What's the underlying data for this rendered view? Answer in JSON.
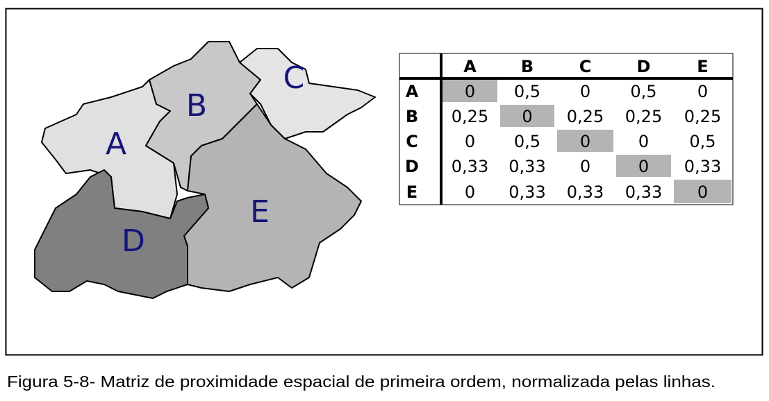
{
  "map": {
    "regions": [
      "A",
      "B",
      "C",
      "D",
      "E"
    ]
  },
  "table": {
    "columns": [
      "A",
      "B",
      "C",
      "D",
      "E"
    ],
    "rows": [
      {
        "label": "A",
        "cells": [
          "0",
          "0,5",
          "0",
          "0,5",
          "0"
        ]
      },
      {
        "label": "B",
        "cells": [
          "0,25",
          "0",
          "0,25",
          "0,25",
          "0,25"
        ]
      },
      {
        "label": "C",
        "cells": [
          "0",
          "0,5",
          "0",
          "0",
          "0,5"
        ]
      },
      {
        "label": "D",
        "cells": [
          "0,33",
          "0,33",
          "0",
          "0",
          "0,33"
        ]
      },
      {
        "label": "E",
        "cells": [
          "0",
          "0,33",
          "0,33",
          "0,33",
          "0"
        ]
      }
    ]
  },
  "caption": "Figura 5-8- Matriz de proximidade espacial de primeira ordem, normalizada pelas linhas."
}
